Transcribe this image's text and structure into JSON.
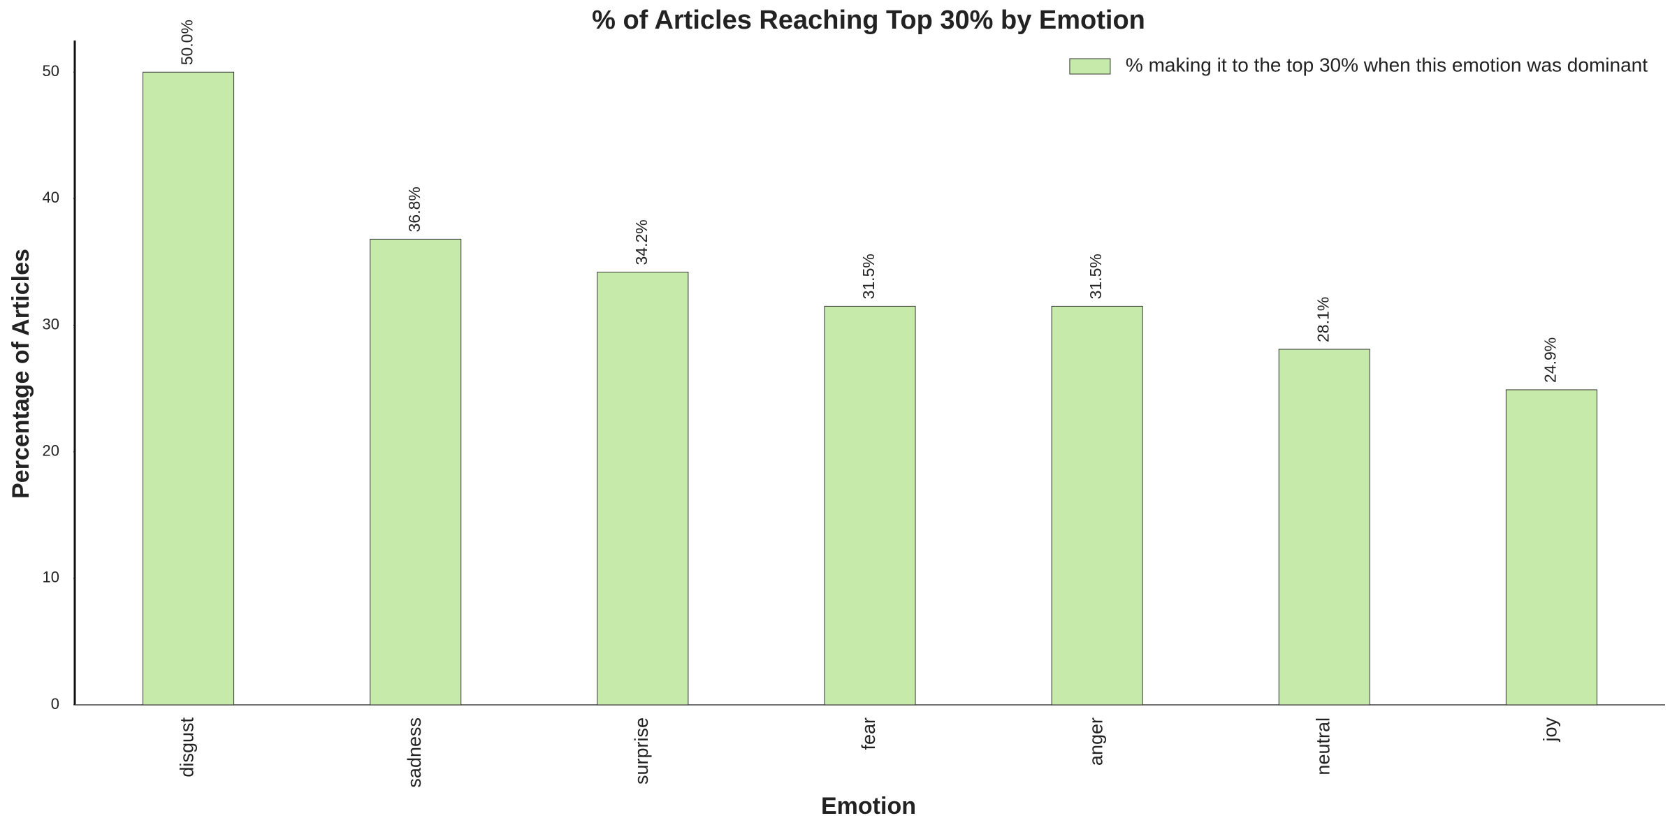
{
  "chart_data": {
    "type": "bar",
    "title": "% of Articles Reaching Top 30% by Emotion",
    "xlabel": "Emotion",
    "ylabel": "Percentage of Articles",
    "categories": [
      "disgust",
      "sadness",
      "surprise",
      "fear",
      "anger",
      "neutral",
      "joy"
    ],
    "series": [
      {
        "name": "% making it to the top 30% when this emotion was dominant",
        "color": "#c6eaa9",
        "values": [
          50.0,
          36.8,
          34.2,
          31.5,
          31.5,
          28.1,
          24.9
        ],
        "value_labels": [
          "50.0%",
          "36.8%",
          "34.2%",
          "31.5%",
          "31.5%",
          "28.1%",
          "24.9%"
        ]
      }
    ],
    "ylim": [
      0,
      52.5
    ],
    "yticks": [
      0,
      10,
      20,
      30,
      40,
      50
    ],
    "grid": false,
    "legend": "upper right"
  }
}
